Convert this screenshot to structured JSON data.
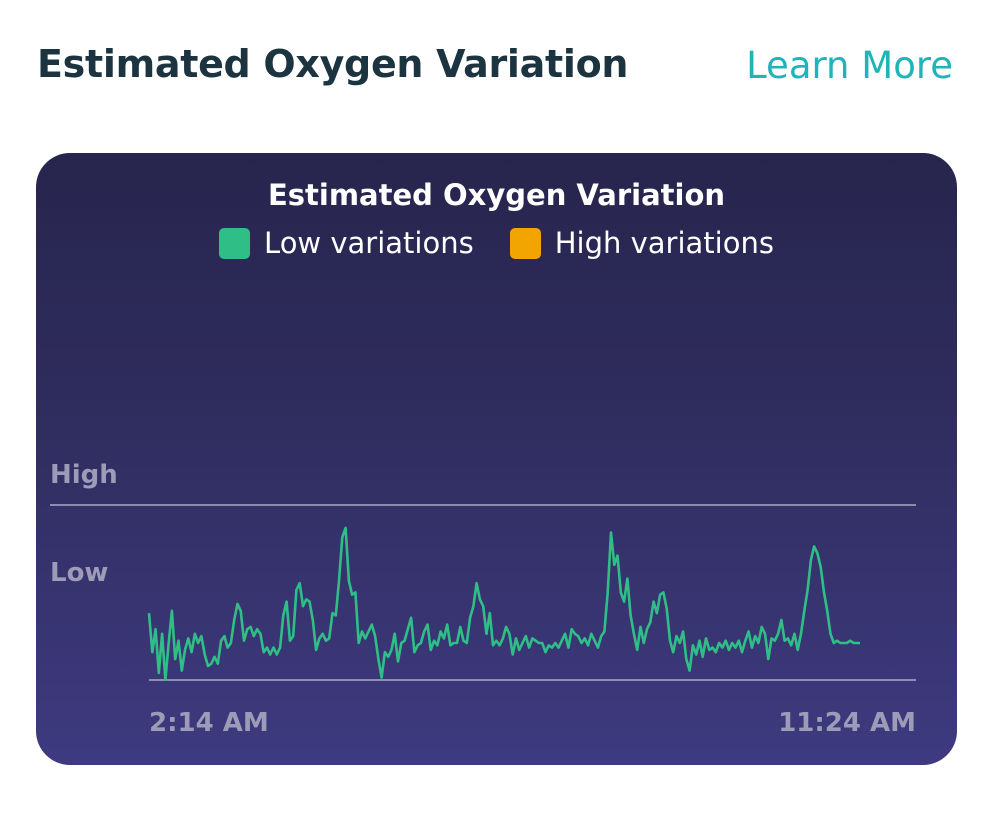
{
  "header": {
    "title": "Estimated Oxygen Variation",
    "learn_more": "Learn More"
  },
  "colors": {
    "accent": "#1fb3ba",
    "low": "#2fbf86",
    "high": "#f2a500",
    "card_top": "#27254d",
    "card_bottom": "#3e3a80"
  },
  "chart_data": {
    "type": "line",
    "title": "Estimated Oxygen Variation",
    "legend": [
      {
        "label": "Low variations",
        "color": "#2fbf86"
      },
      {
        "label": "High variations",
        "color": "#f2a500"
      }
    ],
    "y_labels": [
      "High",
      "Low"
    ],
    "x_labels": [
      "2:14 AM",
      "11:24 AM"
    ],
    "ylim": [
      0,
      1
    ],
    "high_threshold": 1,
    "series": [
      {
        "color": "#2fbf86",
        "values": [
          0.53,
          0.36,
          0.46,
          0.27,
          0.44,
          0.24,
          0.4,
          0.54,
          0.33,
          0.41,
          0.28,
          0.37,
          0.42,
          0.36,
          0.44,
          0.4,
          0.43,
          0.35,
          0.3,
          0.31,
          0.34,
          0.31,
          0.41,
          0.43,
          0.38,
          0.4,
          0.5,
          0.57,
          0.54,
          0.41,
          0.46,
          0.47,
          0.43,
          0.46,
          0.44,
          0.36,
          0.38,
          0.35,
          0.38,
          0.35,
          0.38,
          0.52,
          0.58,
          0.41,
          0.43,
          0.63,
          0.66,
          0.56,
          0.59,
          0.58,
          0.5,
          0.37,
          0.42,
          0.44,
          0.41,
          0.42,
          0.53,
          0.52,
          0.67,
          0.86,
          0.9,
          0.67,
          0.61,
          0.62,
          0.4,
          0.45,
          0.42,
          0.45,
          0.48,
          0.43,
          0.33,
          0.25,
          0.36,
          0.34,
          0.37,
          0.44,
          0.32,
          0.4,
          0.41,
          0.46,
          0.51,
          0.36,
          0.39,
          0.4,
          0.45,
          0.48,
          0.37,
          0.41,
          0.39,
          0.45,
          0.42,
          0.48,
          0.39,
          0.4,
          0.4,
          0.47,
          0.41,
          0.4,
          0.51,
          0.56,
          0.66,
          0.59,
          0.56,
          0.44,
          0.53,
          0.39,
          0.41,
          0.39,
          0.42,
          0.47,
          0.44,
          0.35,
          0.42,
          0.37,
          0.4,
          0.43,
          0.38,
          0.42,
          0.41,
          0.4,
          0.4,
          0.36,
          0.39,
          0.38,
          0.4,
          0.38,
          0.41,
          0.44,
          0.38,
          0.46,
          0.44,
          0.43,
          0.4,
          0.42,
          0.39,
          0.44,
          0.41,
          0.38,
          0.43,
          0.45,
          0.62,
          0.88,
          0.74,
          0.78,
          0.62,
          0.58,
          0.68,
          0.52,
          0.44,
          0.37,
          0.47,
          0.4,
          0.46,
          0.49,
          0.58,
          0.53,
          0.61,
          0.62,
          0.55,
          0.41,
          0.36,
          0.43,
          0.4,
          0.45,
          0.33,
          0.28,
          0.39,
          0.35,
          0.41,
          0.34,
          0.42,
          0.37,
          0.38,
          0.36,
          0.4,
          0.38,
          0.41,
          0.37,
          0.4,
          0.38,
          0.41,
          0.36,
          0.41,
          0.45,
          0.38,
          0.43,
          0.4,
          0.47,
          0.44,
          0.33,
          0.42,
          0.41,
          0.44,
          0.5,
          0.41,
          0.42,
          0.39,
          0.44,
          0.37,
          0.44,
          0.54,
          0.63,
          0.76,
          0.82,
          0.79,
          0.73,
          0.62,
          0.54,
          0.44,
          0.4,
          0.41,
          0.4,
          0.4,
          0.4,
          0.41,
          0.4,
          0.4,
          0.4
        ]
      }
    ]
  }
}
